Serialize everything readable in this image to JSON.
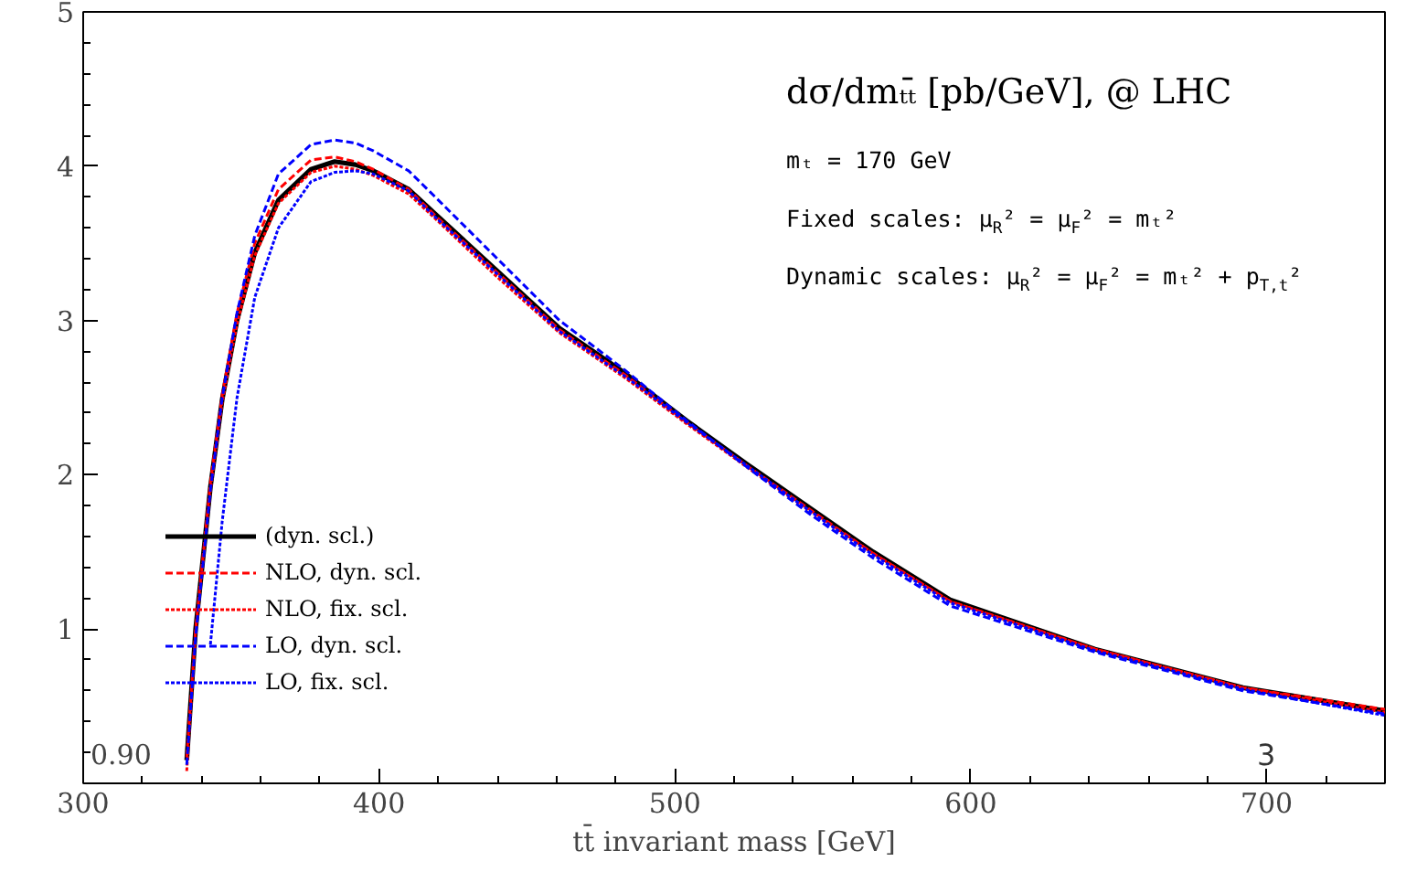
{
  "chart_data": {
    "type": "line",
    "title": "dσ/dmₜₜ̄  [pb/GeV], @ LHC",
    "xlabel": "tt̄ invariant mass [GeV]",
    "annotations": [
      "0.90",
      "mₜ = 170 GeV",
      "Fixed scales: μ$_{R}$² = μ$_{F}$² = mₜ²",
      "Dynamic scales: μ$_{R}$² = μ$_{F}$² = mₜ² + p$_{T,t}$²",
      "3"
    ],
    "x": [
      335,
      338,
      343,
      347,
      352,
      358,
      366,
      377,
      385,
      392,
      398,
      410,
      419,
      440,
      461,
      483,
      504,
      525,
      546,
      567,
      593,
      642,
      692,
      740
    ],
    "series": [
      {
        "name": "(dyn. scl.)",
        "color": "#000000",
        "line_style": "solid",
        "values": [
          0.15,
          1.0,
          1.92,
          2.49,
          3.0,
          3.44,
          3.78,
          3.98,
          4.03,
          4.01,
          3.97,
          3.85,
          3.69,
          3.32,
          2.95,
          2.66,
          2.35,
          2.06,
          1.78,
          1.5,
          1.19,
          0.87,
          0.62,
          0.47
        ]
      },
      {
        "name": "NLO, dyn. scl.",
        "color": "#ff0000",
        "line_style": "dashed",
        "values": [
          0.17,
          1.0,
          1.95,
          2.52,
          3.05,
          3.5,
          3.85,
          4.04,
          4.06,
          4.03,
          3.98,
          3.85,
          3.68,
          3.31,
          2.94,
          2.65,
          2.34,
          2.05,
          1.77,
          1.49,
          1.18,
          0.87,
          0.62,
          0.48
        ]
      },
      {
        "name": "NLO, fix. scl.",
        "color": "#ff0000",
        "line_style": "dotted",
        "values": [
          0.08,
          0.98,
          1.9,
          2.47,
          2.98,
          3.42,
          3.76,
          3.96,
          4.0,
          3.98,
          3.94,
          3.82,
          3.66,
          3.28,
          2.92,
          2.63,
          2.33,
          2.04,
          1.76,
          1.49,
          1.18,
          0.87,
          0.62,
          0.46
        ]
      },
      {
        "name": "LO, dyn. scl.",
        "color": "#0000ff",
        "line_style": "dashed",
        "values": [
          0.12,
          0.95,
          1.9,
          2.5,
          3.05,
          3.55,
          3.95,
          4.14,
          4.17,
          4.15,
          4.1,
          3.97,
          3.8,
          3.4,
          3.0,
          2.68,
          2.35,
          2.04,
          1.74,
          1.46,
          1.15,
          0.85,
          0.6,
          0.45
        ]
      },
      {
        "name": "LO, fix. scl.",
        "color": "#0000ff",
        "line_style": "dotted",
        "values": [
          null,
          null,
          0.9,
          1.7,
          2.5,
          3.15,
          3.6,
          3.9,
          3.96,
          3.97,
          3.95,
          3.84,
          3.67,
          3.3,
          2.93,
          2.64,
          2.34,
          2.05,
          1.76,
          1.48,
          1.17,
          0.86,
          0.61,
          0.44
        ]
      }
    ],
    "xlim": [
      300,
      740
    ],
    "xticks": [
      300,
      400,
      500,
      600,
      700
    ],
    "ylim": [
      0,
      5
    ],
    "yticks": [
      1,
      2,
      3,
      4,
      5
    ],
    "grid": false,
    "legend": "bottom left",
    "marker": "none"
  }
}
